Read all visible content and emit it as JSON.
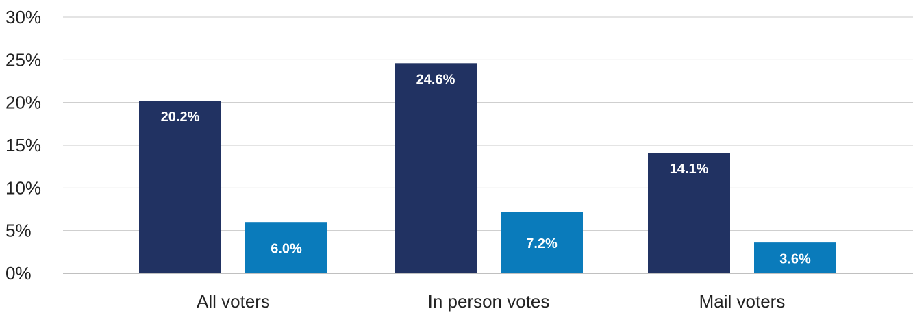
{
  "chart_data": {
    "type": "bar",
    "categories": [
      "All voters",
      "In person votes",
      "Mail voters"
    ],
    "series": [
      {
        "values": [
          20.2,
          24.6,
          14.1
        ],
        "labels": [
          "20.2%",
          "24.6%",
          "14.1%"
        ],
        "color": "#213262"
      },
      {
        "values": [
          6.0,
          7.2,
          3.6
        ],
        "labels": [
          "6.0%",
          "7.2%",
          "3.6%"
        ],
        "color": "#0a7bbb"
      }
    ],
    "y_ticks": [
      "0%",
      "5%",
      "10%",
      "15%",
      "20%",
      "25%",
      "30%"
    ],
    "ylim": [
      0,
      30
    ],
    "grid": true,
    "title": "",
    "xlabel": "",
    "ylabel": ""
  }
}
